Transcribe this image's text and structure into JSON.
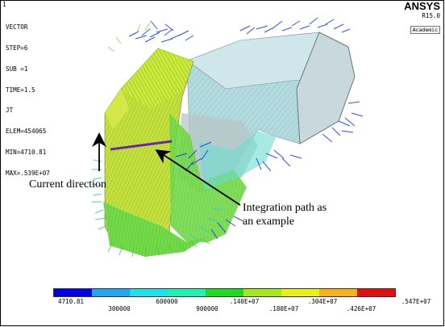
{
  "window_number": "1",
  "info_lines": [
    "VECTOR",
    "STEP=6",
    "SUB =1",
    "TIME=1.5",
    "JT",
    "ELEM=454065",
    "MIN=4710.81",
    "MAX=.539E+07"
  ],
  "brand": {
    "name": "ANSYS",
    "version": "R15.0",
    "edition": "Academic"
  },
  "annotations": {
    "current_direction": "Current direction",
    "integration_path": "Integration path as\nan example"
  },
  "legend": {
    "colors": [
      "#0000e0",
      "#22a6f0",
      "#22e0e6",
      "#22f0b0",
      "#22d820",
      "#a6e820",
      "#e8f020",
      "#f6b020",
      "#e01010"
    ],
    "upper_labels": [
      "4710.81",
      "600000",
      ".140E+07",
      ".304E+07",
      ".547E+07"
    ],
    "lower_labels": [
      "300000",
      "900000",
      ".180E+07",
      ".426E+07"
    ]
  },
  "colors": {
    "path_line": "#6b2aa0",
    "arrow": "#000000"
  }
}
